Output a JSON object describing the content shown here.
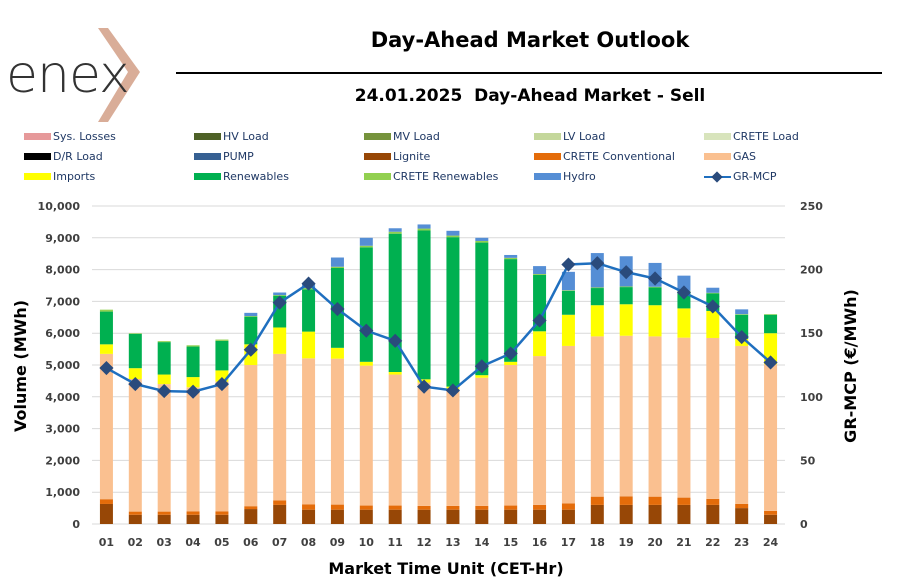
{
  "header": {
    "logo_text": "enex",
    "title": "Day-Ahead Market Outlook",
    "subtitle": "24.01.2025  Day-Ahead Market - Sell"
  },
  "legend": [
    {
      "name": "Sys. Losses",
      "color": "#e6999a",
      "kind": "bar"
    },
    {
      "name": "HV Load",
      "color": "#4e6127",
      "kind": "bar"
    },
    {
      "name": "MV Load",
      "color": "#76933c",
      "kind": "bar"
    },
    {
      "name": "LV Load",
      "color": "#c4d79b",
      "kind": "bar"
    },
    {
      "name": "CRETE Load",
      "color": "#d8e4bc",
      "kind": "bar"
    },
    {
      "name": "D/R Load",
      "color": "#000000",
      "kind": "bar"
    },
    {
      "name": "PUMP",
      "color": "#366092",
      "kind": "bar"
    },
    {
      "name": "Lignite",
      "color": "#974706",
      "kind": "bar"
    },
    {
      "name": "CRETE Conventional",
      "color": "#e46c0a",
      "kind": "bar"
    },
    {
      "name": "GAS",
      "color": "#fac090",
      "kind": "bar"
    },
    {
      "name": "Imports",
      "color": "#ffff00",
      "kind": "bar"
    },
    {
      "name": "Renewables",
      "color": "#00b050",
      "kind": "bar"
    },
    {
      "name": "CRETE Renewables",
      "color": "#92d050",
      "kind": "bar"
    },
    {
      "name": "Hydro",
      "color": "#558ed5",
      "kind": "bar"
    },
    {
      "name": "GR-MCP",
      "color": "#1f6fbf",
      "kind": "line"
    }
  ],
  "chart_data": {
    "type": "bar",
    "stacked": true,
    "title": "24.01.2025  Day-Ahead Market - Sell",
    "xlabel": "Market Time Unit (CET-Hr)",
    "ylabel": "Volume (MWh)",
    "y2label": "GR-MCP (€/MWh)",
    "ylim": [
      0,
      10000
    ],
    "y2lim": [
      0,
      250
    ],
    "yticks": [
      "0",
      "1,000",
      "2,000",
      "3,000",
      "4,000",
      "5,000",
      "6,000",
      "7,000",
      "8,000",
      "9,000",
      "10,000"
    ],
    "y2ticks": [
      "0",
      "50",
      "100",
      "150",
      "200",
      "250"
    ],
    "grid": true,
    "legend_position": "top",
    "categories": [
      "01",
      "02",
      "03",
      "04",
      "05",
      "06",
      "07",
      "08",
      "09",
      "10",
      "11",
      "12",
      "13",
      "14",
      "15",
      "16",
      "17",
      "18",
      "19",
      "20",
      "21",
      "22",
      "23",
      "24"
    ],
    "series": [
      {
        "name": "Lignite",
        "color": "#974706",
        "values": [
          630,
          290,
          290,
          290,
          290,
          470,
          600,
          450,
          450,
          450,
          450,
          450,
          450,
          450,
          450,
          450,
          450,
          600,
          600,
          600,
          600,
          600,
          500,
          290
        ]
      },
      {
        "name": "CRETE Conventional",
        "color": "#e46c0a",
        "values": [
          150,
          100,
          100,
          110,
          110,
          90,
          140,
          170,
          160,
          130,
          130,
          120,
          120,
          120,
          130,
          150,
          200,
          260,
          270,
          260,
          230,
          190,
          130,
          120
        ]
      },
      {
        "name": "GAS",
        "color": "#fac090",
        "values": [
          4570,
          4170,
          4010,
          3900,
          4080,
          4440,
          4610,
          4590,
          4590,
          4400,
          4120,
          3880,
          3680,
          4030,
          4420,
          4680,
          4950,
          5040,
          5050,
          5040,
          5030,
          5060,
          4970,
          4610
        ]
      },
      {
        "name": "Imports",
        "color": "#ffff00",
        "values": [
          300,
          340,
          300,
          320,
          350,
          650,
          830,
          840,
          340,
          120,
          80,
          100,
          70,
          80,
          100,
          780,
          980,
          980,
          990,
          980,
          920,
          850,
          220,
          980
        ]
      },
      {
        "name": "Renewables",
        "color": "#00b050",
        "values": [
          1030,
          1080,
          1020,
          960,
          930,
          870,
          1000,
          1330,
          2510,
          3600,
          4350,
          4680,
          4700,
          4170,
          3230,
          1770,
          750,
          540,
          540,
          560,
          530,
          550,
          760,
          580
        ]
      },
      {
        "name": "CRETE Renewables",
        "color": "#92d050",
        "values": [
          60,
          20,
          30,
          40,
          40,
          20,
          20,
          40,
          40,
          50,
          60,
          60,
          50,
          50,
          40,
          30,
          20,
          20,
          20,
          20,
          20,
          20,
          20,
          20
        ]
      },
      {
        "name": "Hydro",
        "color": "#558ed5",
        "values": [
          0,
          0,
          0,
          0,
          0,
          100,
          80,
          160,
          290,
          250,
          110,
          130,
          150,
          100,
          90,
          250,
          580,
          1080,
          950,
          750,
          480,
          160,
          150,
          0
        ]
      }
    ],
    "line_series": {
      "name": "GR-MCP",
      "axis": "right",
      "color": "#1f6fbf",
      "marker_color": "#2a4b7c",
      "values": [
        122.6,
        110.0,
        104.5,
        104.0,
        110.0,
        137.0,
        174.0,
        189.0,
        169.0,
        152.0,
        144.0,
        108.0,
        105.0,
        124.0,
        134.0,
        160.0,
        204.0,
        205.0,
        198.0,
        193.0,
        182.0,
        171.0,
        147.0,
        127.0
      ]
    }
  }
}
